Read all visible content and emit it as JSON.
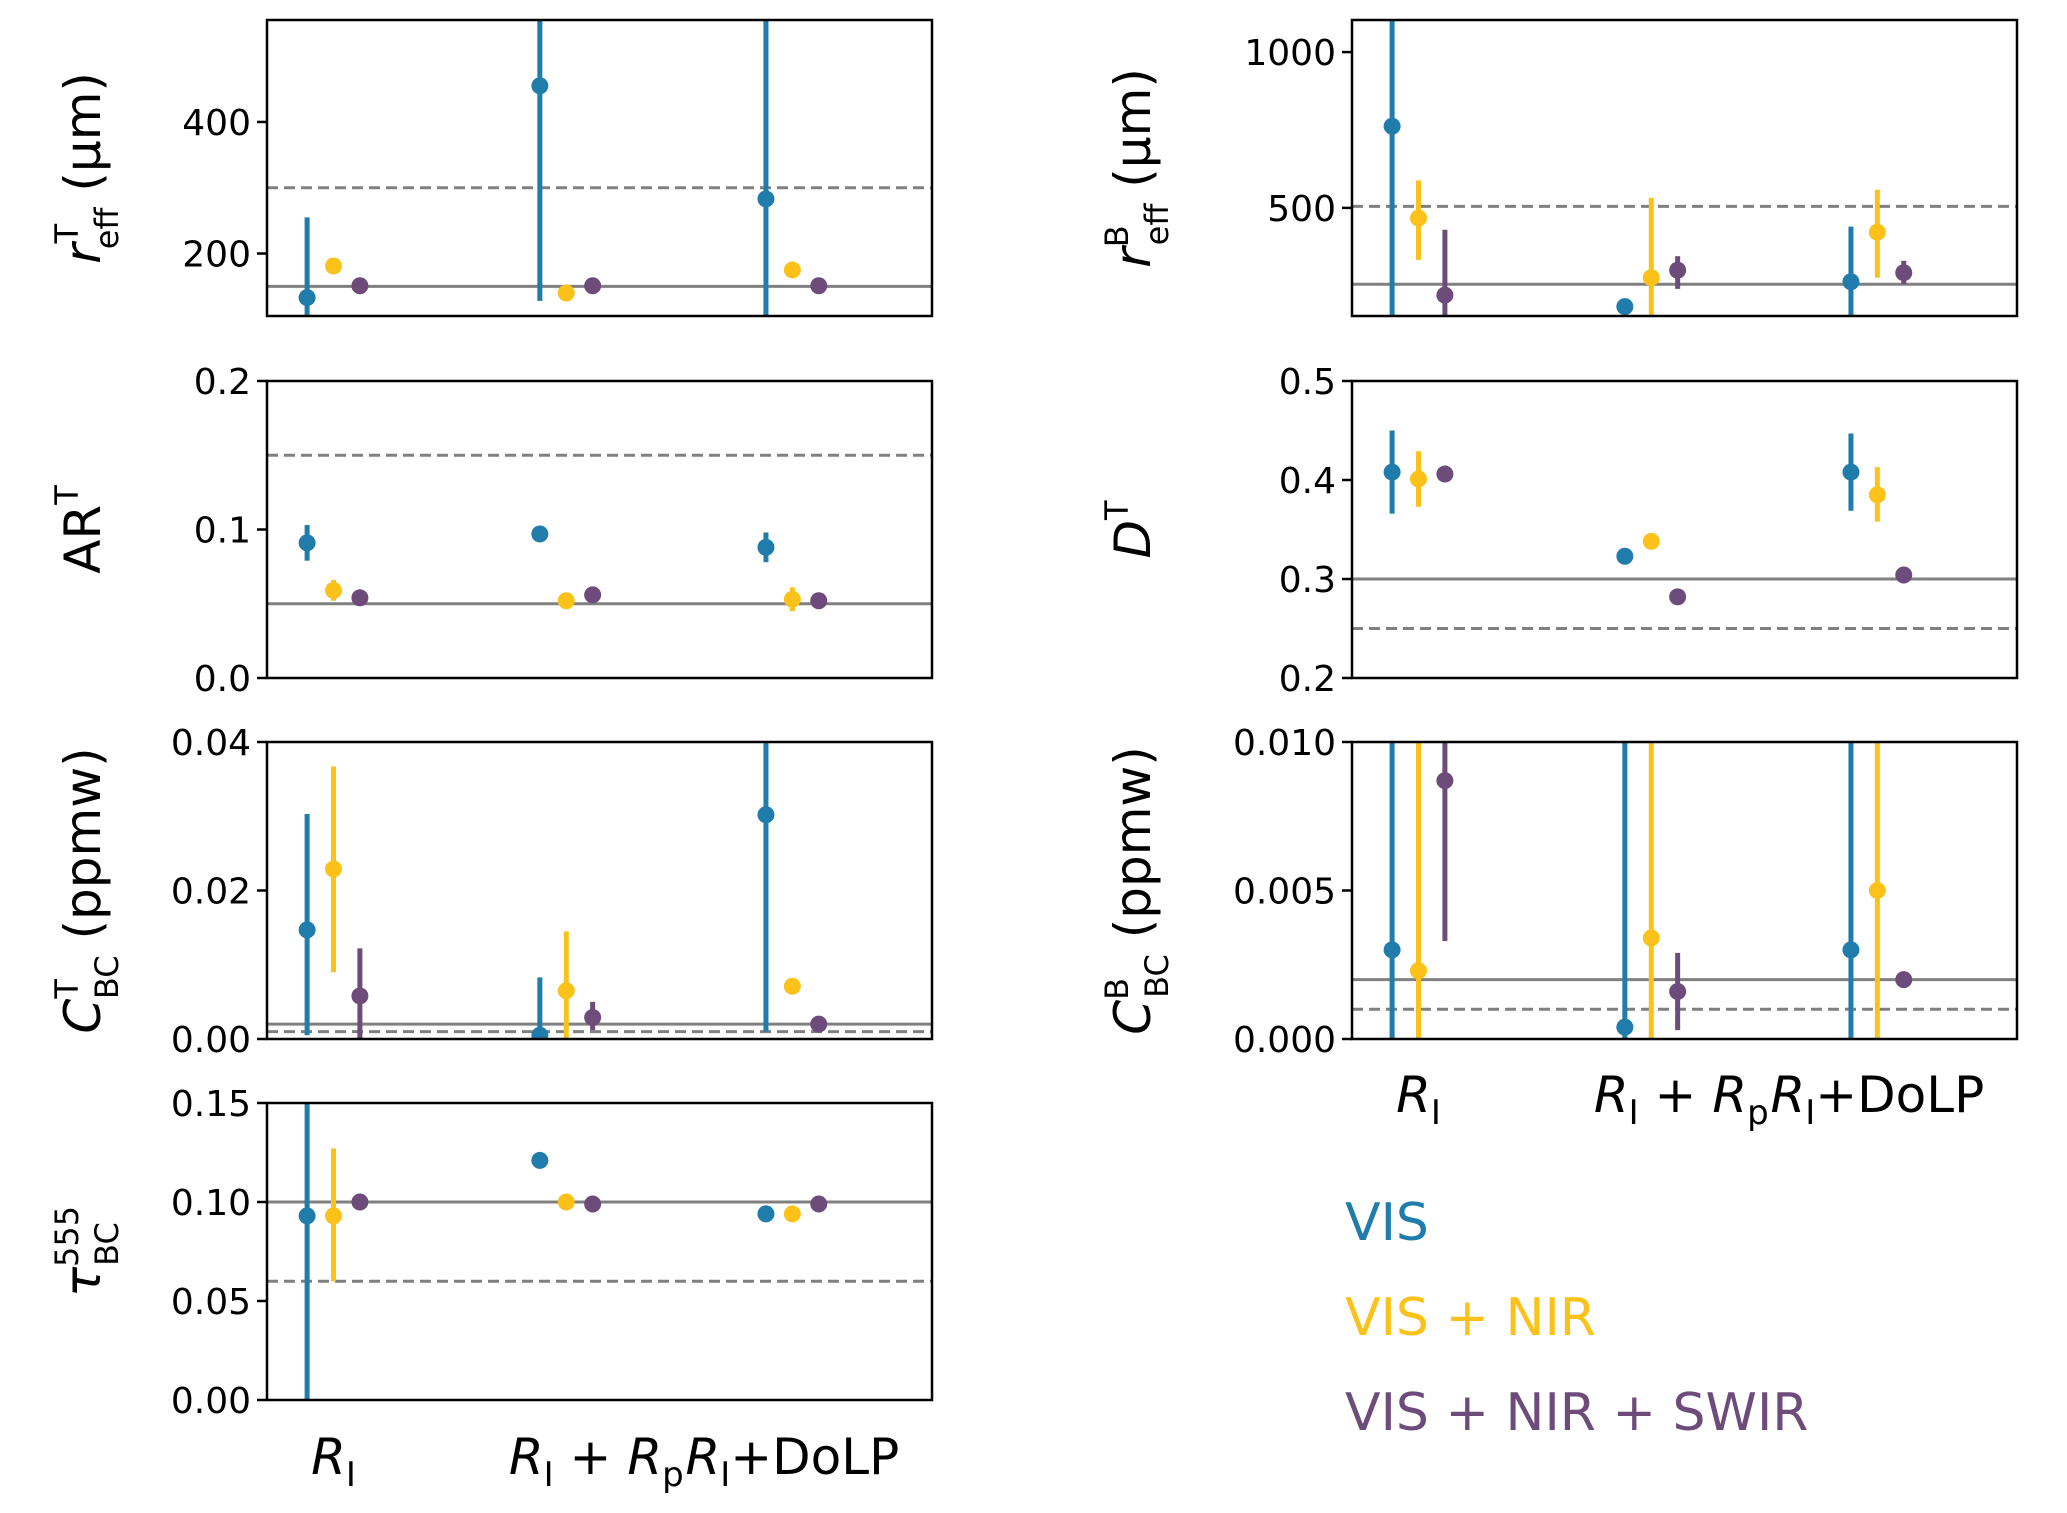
{
  "colors": {
    "vis": "#1f7cab",
    "visnir": "#fcc21a",
    "visnirswir": "#6d4c7b",
    "ref": "#808080"
  },
  "legend": [
    {
      "key": "vis",
      "label": "VIS"
    },
    {
      "key": "visnir",
      "label": "VIS + NIR"
    },
    {
      "key": "visnirswir",
      "label": "VIS + NIR + SWIR"
    }
  ],
  "x_categories": [
    {
      "main": "R",
      "sub": "I",
      "plus_main": "",
      "plus_sub": "",
      "suffix": ""
    },
    {
      "main": "R",
      "sub": "I",
      "plus_main": "R",
      "plus_sub": "p",
      "suffix": ""
    },
    {
      "main": "R",
      "sub": "I",
      "plus_main": "",
      "plus_sub": "",
      "suffix": "+DoLP"
    }
  ],
  "chart_data": [
    {
      "id": "reff_top",
      "type": "scatter",
      "ylabel": {
        "sym": "r",
        "sup": "T",
        "sub": "eff",
        "unit": " (μm)"
      },
      "ylim": [
        105,
        555
      ],
      "yticks": [
        "200",
        "400"
      ],
      "ytick_values": [
        200,
        400
      ],
      "ref_solid": 150,
      "ref_dashed": 300,
      "series": [
        {
          "name": "VIS",
          "key": "vis",
          "points": [
            {
              "v": 133,
              "lo": 100,
              "hi": 255
            },
            {
              "v": 455,
              "lo": 128,
              "hi": 999
            },
            {
              "v": 283,
              "lo": 100,
              "hi": 999
            }
          ]
        },
        {
          "name": "VIS + NIR",
          "key": "visnir",
          "points": [
            {
              "v": 181,
              "lo": 181,
              "hi": 181
            },
            {
              "v": 140,
              "lo": 140,
              "hi": 140
            },
            {
              "v": 175,
              "lo": 175,
              "hi": 175
            }
          ]
        },
        {
          "name": "VIS + NIR + SWIR",
          "key": "visnirswir",
          "points": [
            {
              "v": 151,
              "lo": 151,
              "hi": 151
            },
            {
              "v": 151,
              "lo": 151,
              "hi": 151
            },
            {
              "v": 151,
              "lo": 151,
              "hi": 151
            }
          ]
        }
      ]
    },
    {
      "id": "reff_bottom",
      "type": "scatter",
      "ylabel": {
        "sym": "r",
        "sup": "B",
        "sub": "eff",
        "unit": " (μm)"
      },
      "ylim": [
        153,
        1103
      ],
      "yticks": [
        "500",
        "1000"
      ],
      "ytick_values": [
        500,
        1000
      ],
      "ref_solid": 255,
      "ref_dashed": 505,
      "series": [
        {
          "name": "VIS",
          "key": "vis",
          "points": [
            {
              "v": 762,
              "lo": 100,
              "hi": 2000
            },
            {
              "v": 183,
              "lo": 160,
              "hi": 200
            },
            {
              "v": 263,
              "lo": 100,
              "hi": 440
            }
          ]
        },
        {
          "name": "VIS + NIR",
          "key": "visnir",
          "points": [
            {
              "v": 467,
              "lo": 333,
              "hi": 588
            },
            {
              "v": 276,
              "lo": 100,
              "hi": 532
            },
            {
              "v": 422,
              "lo": 276,
              "hi": 558
            }
          ]
        },
        {
          "name": "VIS + NIR + SWIR",
          "key": "visnirswir",
          "points": [
            {
              "v": 220,
              "lo": 100,
              "hi": 430
            },
            {
              "v": 300,
              "lo": 240,
              "hi": 345
            },
            {
              "v": 292,
              "lo": 255,
              "hi": 330
            }
          ]
        }
      ]
    },
    {
      "id": "ar_top",
      "type": "scatter",
      "ylabel": {
        "sym": "AR",
        "sup": "T",
        "sub": "",
        "unit": "",
        "upright": true
      },
      "ylim": [
        0.0,
        0.2
      ],
      "yticks": [
        "0.0",
        "0.1",
        "0.2"
      ],
      "ytick_values": [
        0.0,
        0.1,
        0.2
      ],
      "ref_solid": 0.05,
      "ref_dashed": 0.15,
      "series": [
        {
          "name": "VIS",
          "key": "vis",
          "points": [
            {
              "v": 0.091,
              "lo": 0.079,
              "hi": 0.103
            },
            {
              "v": 0.097,
              "lo": 0.097,
              "hi": 0.097
            },
            {
              "v": 0.088,
              "lo": 0.078,
              "hi": 0.098
            }
          ]
        },
        {
          "name": "VIS + NIR",
          "key": "visnir",
          "points": [
            {
              "v": 0.059,
              "lo": 0.052,
              "hi": 0.066
            },
            {
              "v": 0.052,
              "lo": 0.052,
              "hi": 0.052
            },
            {
              "v": 0.053,
              "lo": 0.045,
              "hi": 0.061
            }
          ]
        },
        {
          "name": "VIS + NIR + SWIR",
          "key": "visnirswir",
          "points": [
            {
              "v": 0.054,
              "lo": 0.054,
              "hi": 0.054
            },
            {
              "v": 0.056,
              "lo": 0.056,
              "hi": 0.056
            },
            {
              "v": 0.052,
              "lo": 0.052,
              "hi": 0.052
            }
          ]
        }
      ]
    },
    {
      "id": "d_top",
      "type": "scatter",
      "ylabel": {
        "sym": "D",
        "sup": "T",
        "sub": "",
        "unit": ""
      },
      "ylim": [
        0.2,
        0.5
      ],
      "yticks": [
        "0.2",
        "0.3",
        "0.4",
        "0.5"
      ],
      "ytick_values": [
        0.2,
        0.3,
        0.4,
        0.5
      ],
      "ref_solid": 0.3,
      "ref_dashed": 0.25,
      "series": [
        {
          "name": "VIS",
          "key": "vis",
          "points": [
            {
              "v": 0.408,
              "lo": 0.366,
              "hi": 0.45
            },
            {
              "v": 0.323,
              "lo": 0.323,
              "hi": 0.323
            },
            {
              "v": 0.408,
              "lo": 0.369,
              "hi": 0.447
            }
          ]
        },
        {
          "name": "VIS + NIR",
          "key": "visnir",
          "points": [
            {
              "v": 0.401,
              "lo": 0.373,
              "hi": 0.429
            },
            {
              "v": 0.338,
              "lo": 0.338,
              "hi": 0.338
            },
            {
              "v": 0.385,
              "lo": 0.358,
              "hi": 0.413
            }
          ]
        },
        {
          "name": "VIS + NIR + SWIR",
          "key": "visnirswir",
          "points": [
            {
              "v": 0.406,
              "lo": 0.406,
              "hi": 0.406
            },
            {
              "v": 0.282,
              "lo": 0.282,
              "hi": 0.282
            },
            {
              "v": 0.304,
              "lo": 0.304,
              "hi": 0.304
            }
          ]
        }
      ]
    },
    {
      "id": "cbc_top",
      "type": "scatter",
      "ylabel": {
        "sym": "C",
        "sup": "T",
        "sub": "BC",
        "unit": "  (ppmw)"
      },
      "ylim": [
        0.0,
        0.04
      ],
      "yticks": [
        "0.00",
        "0.02",
        "0.04"
      ],
      "ytick_values": [
        0.0,
        0.02,
        0.04
      ],
      "ref_solid": 0.002,
      "ref_dashed": 0.001,
      "series": [
        {
          "name": "VIS",
          "key": "vis",
          "points": [
            {
              "v": 0.0147,
              "lo": 0.0005,
              "hi": 0.0303
            },
            {
              "v": 0.0005,
              "lo": 0.0,
              "hi": 0.0083
            },
            {
              "v": 0.0302,
              "lo": 0.001,
              "hi": 0.06
            }
          ]
        },
        {
          "name": "VIS + NIR",
          "key": "visnir",
          "points": [
            {
              "v": 0.0229,
              "lo": 0.009,
              "hi": 0.0367
            },
            {
              "v": 0.0065,
              "lo": 0.0,
              "hi": 0.0145
            },
            {
              "v": 0.0071,
              "lo": 0.0071,
              "hi": 0.0071
            }
          ]
        },
        {
          "name": "VIS + NIR + SWIR",
          "key": "visnirswir",
          "points": [
            {
              "v": 0.0058,
              "lo": 0.0,
              "hi": 0.0122
            },
            {
              "v": 0.0029,
              "lo": 0.0012,
              "hi": 0.005
            },
            {
              "v": 0.002,
              "lo": 0.002,
              "hi": 0.002
            }
          ]
        }
      ]
    },
    {
      "id": "cbc_bottom",
      "type": "scatter",
      "ylabel": {
        "sym": "C",
        "sup": "B",
        "sub": "BC",
        "unit": "  (ppmw)"
      },
      "ylim": [
        0.0,
        0.01
      ],
      "yticks": [
        "0.000",
        "0.005",
        "0.010"
      ],
      "ytick_values": [
        0.0,
        0.005,
        0.01
      ],
      "ref_solid": 0.002,
      "ref_dashed": 0.001,
      "series": [
        {
          "name": "VIS",
          "key": "vis",
          "points": [
            {
              "v": 0.003,
              "lo": 0.0,
              "hi": 0.02
            },
            {
              "v": 0.0004,
              "lo": 0.0,
              "hi": 0.02
            },
            {
              "v": 0.003,
              "lo": 0.0,
              "hi": 0.02
            }
          ]
        },
        {
          "name": "VIS + NIR",
          "key": "visnir",
          "points": [
            {
              "v": 0.0023,
              "lo": 0.0,
              "hi": 0.02
            },
            {
              "v": 0.0034,
              "lo": 0.0,
              "hi": 0.02
            },
            {
              "v": 0.005,
              "lo": 0.0,
              "hi": 0.02
            }
          ]
        },
        {
          "name": "VIS + NIR + SWIR",
          "key": "visnirswir",
          "points": [
            {
              "v": 0.0087,
              "lo": 0.0033,
              "hi": 0.0115
            },
            {
              "v": 0.0016,
              "lo": 0.0003,
              "hi": 0.0029
            },
            {
              "v": 0.002,
              "lo": 0.002,
              "hi": 0.002
            }
          ]
        }
      ]
    },
    {
      "id": "tau_bc",
      "type": "scatter",
      "ylabel": {
        "sym": "τ",
        "sup": "555",
        "sub": "BC",
        "unit": ""
      },
      "ylim": [
        0.0,
        0.15
      ],
      "yticks": [
        "0.00",
        "0.05",
        "0.10",
        "0.15"
      ],
      "ytick_values": [
        0.0,
        0.05,
        0.1,
        0.15
      ],
      "ref_solid": 0.1,
      "ref_dashed": 0.06,
      "series": [
        {
          "name": "VIS",
          "key": "vis",
          "points": [
            {
              "v": 0.093,
              "lo": 0.0,
              "hi": 0.2
            },
            {
              "v": 0.121,
              "lo": 0.121,
              "hi": 0.121
            },
            {
              "v": 0.094,
              "lo": 0.094,
              "hi": 0.094
            }
          ]
        },
        {
          "name": "VIS + NIR",
          "key": "visnir",
          "points": [
            {
              "v": 0.093,
              "lo": 0.06,
              "hi": 0.127
            },
            {
              "v": 0.1,
              "lo": 0.1,
              "hi": 0.1
            },
            {
              "v": 0.094,
              "lo": 0.094,
              "hi": 0.094
            }
          ]
        },
        {
          "name": "VIS + NIR + SWIR",
          "key": "visnirswir",
          "points": [
            {
              "v": 0.1,
              "lo": 0.1,
              "hi": 0.1
            },
            {
              "v": 0.099,
              "lo": 0.099,
              "hi": 0.099
            },
            {
              "v": 0.099,
              "lo": 0.099,
              "hi": 0.099
            }
          ]
        }
      ]
    }
  ]
}
